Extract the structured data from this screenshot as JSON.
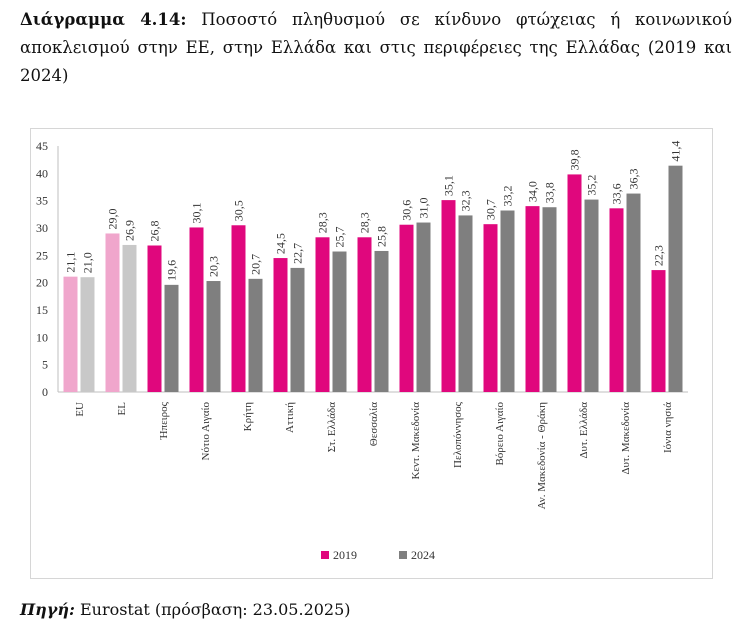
{
  "caption": {
    "label": "Διάγραμμα 4.14:",
    "text": "Ποσοστό πληθυσμού σε κίνδυνο φτώχειας ή κοινωνικού αποκλεισμού στην ΕΕ, στην Ελλάδα και στις περιφέρειες της Ελλάδας (2019 και 2024)"
  },
  "source": {
    "label": "Πηγή:",
    "text": "Eurostat (πρόσβαση: 23.05.2025)"
  },
  "chart_data": {
    "type": "bar",
    "title": "",
    "xlabel": "",
    "ylabel": "",
    "ylim": [
      0,
      45
    ],
    "yticks": [
      "0",
      "5",
      "10",
      "15",
      "20",
      "25",
      "30",
      "35",
      "40",
      "45"
    ],
    "grid": false,
    "legend_position": "bottom",
    "categories": [
      "EU",
      "EL",
      "Ήπειρος",
      "Νότιο Αιγαίο",
      "Κρήτη",
      "Αττική",
      "Στ. Ελλάδα",
      "Θεσσαλία",
      "Κεντ. Μακεδονία",
      "Πελοπόννησος",
      "Βόρειο Αιγαίο",
      "Αν. Μακεδονία - Θράκη",
      "Δυτ. Ελλάδα",
      "Δυτ. Μακεδονία",
      "Ιόνια νησιά"
    ],
    "series": [
      {
        "name": "2019",
        "color": "#e0077d",
        "values": [
          21.1,
          29.0,
          26.8,
          30.1,
          30.5,
          24.5,
          28.3,
          28.3,
          30.6,
          35.1,
          30.7,
          34.0,
          39.8,
          33.6,
          22.3
        ],
        "labels": [
          "21,1",
          "29,0",
          "26,8",
          "30,1",
          "30,5",
          "24,5",
          "28,3",
          "28,3",
          "30,6",
          "35,1",
          "30,7",
          "34,0",
          "39,8",
          "33,6",
          "22,3"
        ]
      },
      {
        "name": "2024",
        "color": "#7f7f7f",
        "values": [
          21.0,
          26.9,
          19.6,
          20.3,
          20.7,
          22.7,
          25.7,
          25.8,
          31.0,
          32.3,
          33.2,
          33.8,
          35.2,
          36.3,
          41.4
        ],
        "labels": [
          "21,0",
          "26,9",
          "19,6",
          "20,3",
          "20,7",
          "22,7",
          "25,7",
          "25,8",
          "31,0",
          "32,3",
          "33,2",
          "33,8",
          "35,2",
          "36,3",
          "41,4"
        ]
      }
    ],
    "highlight_colors": {
      "2019": "#f0a6cc",
      "2024": "#c8c8c8"
    },
    "highlighted_categories": [
      "EU",
      "EL"
    ]
  }
}
